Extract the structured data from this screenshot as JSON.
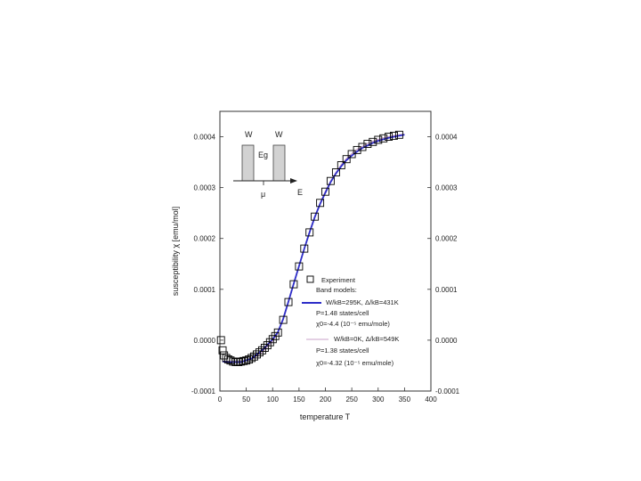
{
  "chart_data": {
    "type": "scatter",
    "title": "",
    "xlabel": "temperature T",
    "ylabel": "susceptibility χ [emu/mol]",
    "xlim": [
      0,
      400
    ],
    "ylim": [
      -0.0001,
      0.00045
    ],
    "x_ticks": [
      0,
      50,
      100,
      150,
      200,
      250,
      300,
      350,
      400
    ],
    "y_ticks": [
      -0.0001,
      0.0,
      0.0001,
      0.0002,
      0.0003,
      0.0004
    ],
    "y_tick_labels": [
      "-0.0001",
      "0.0000",
      "0.0001",
      "0.0002",
      "0.0003",
      "0.0004"
    ],
    "right_y_tick_labels": [
      "-0.0001",
      "0.0000",
      "0.0001",
      "0.0002",
      "0.0003",
      "0.0004"
    ],
    "grid": false,
    "series": [
      {
        "name": "Experiment",
        "marker": "open-square",
        "color": "#000000",
        "x": [
          2,
          5,
          8,
          12,
          16,
          20,
          25,
          30,
          35,
          40,
          45,
          50,
          55,
          60,
          65,
          70,
          75,
          80,
          85,
          90,
          95,
          100,
          105,
          110,
          120,
          130,
          140,
          150,
          160,
          170,
          180,
          190,
          200,
          210,
          220,
          230,
          240,
          250,
          260,
          270,
          280,
          290,
          300,
          310,
          320,
          330,
          340
        ],
        "y": [
          0.0,
          -2e-05,
          -3e-05,
          -3.5e-05,
          -3.8e-05,
          -4e-05,
          -4.2e-05,
          -4.3e-05,
          -4.3e-05,
          -4.2e-05,
          -4.1e-05,
          -4e-05,
          -3.8e-05,
          -3.5e-05,
          -3.2e-05,
          -2.8e-05,
          -2.4e-05,
          -2e-05,
          -1.5e-05,
          -1e-05,
          -4e-06,
          2e-06,
          8e-06,
          1.5e-05,
          4e-05,
          7.5e-05,
          0.00011,
          0.000145,
          0.00018,
          0.000212,
          0.000243,
          0.00027,
          0.000292,
          0.000313,
          0.00033,
          0.000344,
          0.000356,
          0.000366,
          0.000374,
          0.00038,
          0.000386,
          0.00039,
          0.000394,
          0.000397,
          0.0004,
          0.000402,
          0.000404
        ]
      },
      {
        "name": "W/kB=295K, Δ/kB=431K",
        "color": "#2d2dc8",
        "x": [
          5,
          20,
          40,
          60,
          80,
          100,
          110,
          120,
          130,
          140,
          150,
          160,
          170,
          180,
          190,
          200,
          210,
          220,
          230,
          240,
          250,
          260,
          270,
          280,
          290,
          300,
          310,
          320,
          330,
          340,
          350
        ],
        "y": [
          -4.2e-05,
          -4.3e-05,
          -4.3e-05,
          -3.6e-05,
          -2e-05,
          2e-06,
          1.6e-05,
          4.2e-05,
          7.6e-05,
          0.000111,
          0.000146,
          0.00018,
          0.000212,
          0.000242,
          0.000268,
          0.00029,
          0.000311,
          0.000328,
          0.000342,
          0.000354,
          0.000363,
          0.000371,
          0.000378,
          0.000383,
          0.000388,
          0.000392,
          0.000395,
          0.000398,
          0.0004,
          0.000402,
          0.000404
        ]
      },
      {
        "name": "W/kB=0K, Δ/kB=549K",
        "color": "#c8a0c8",
        "x": [
          5,
          20,
          40,
          60,
          80,
          100,
          110,
          120,
          130,
          140,
          150,
          160,
          170,
          180,
          190,
          200,
          210,
          220,
          230,
          240,
          250,
          260,
          270,
          280,
          290,
          300,
          310,
          320,
          330,
          340,
          350
        ],
        "y": [
          -4.1e-05,
          -4.2e-05,
          -4.2e-05,
          -3.8e-05,
          -2.4e-05,
          -2e-06,
          1.4e-05,
          4e-05,
          7.4e-05,
          0.00011,
          0.000146,
          0.000181,
          0.000214,
          0.000244,
          0.00027,
          0.000293,
          0.000313,
          0.00033,
          0.000345,
          0.000357,
          0.000367,
          0.000375,
          0.000381,
          0.000387,
          0.000391,
          0.000395,
          0.000398,
          0.0004,
          0.000402,
          0.000404,
          0.000405
        ]
      }
    ],
    "legend": {
      "position": "lower-right",
      "lines": [
        "Experiment",
        "Band models:",
        "W/kB=295K, Δ/kB=431K",
        "P=1.48 states/cell",
        "χ0=-4.4 (10⁻⁵ emu/mole)",
        "W/kB=0K, Δ/kB=549K",
        "P=1.38 states/cell",
        "χ0=-4.32 (10⁻⁵ emu/mole)"
      ]
    },
    "inset": {
      "labels": [
        "W",
        "W",
        "Eg",
        "μ",
        "E"
      ]
    }
  }
}
